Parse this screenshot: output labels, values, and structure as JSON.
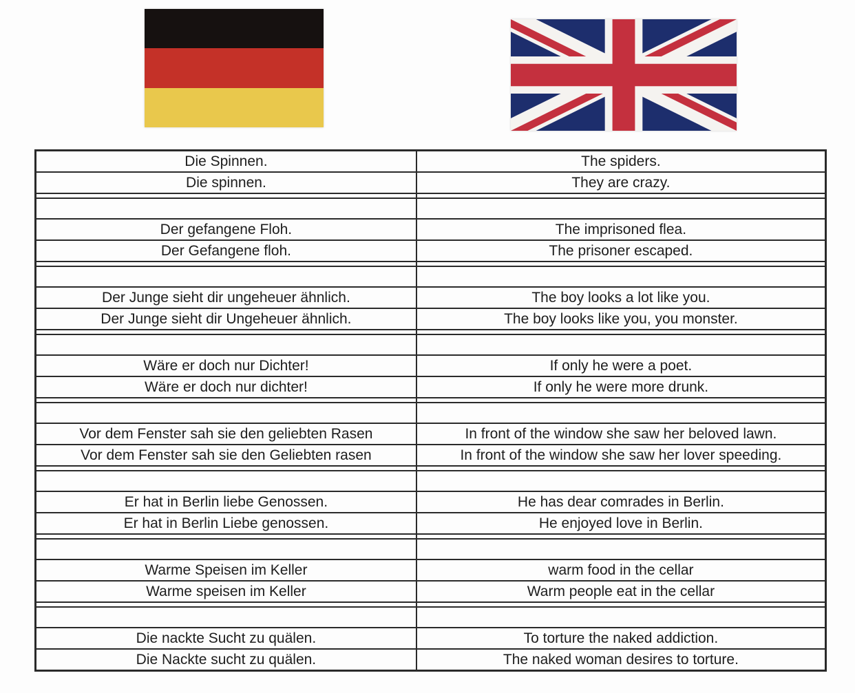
{
  "flags": {
    "germany": {
      "colors": {
        "black": "#161110",
        "red": "#c43128",
        "gold": "#e9c84c"
      }
    },
    "uk": {
      "colors": {
        "blue": "#1d2e6d",
        "red": "#c4303e",
        "white": "#f5f3f0"
      }
    }
  },
  "table": {
    "border_color": "#2a2a2a",
    "text_color": "#1d1d1d",
    "groups": [
      [
        {
          "de": "Die Spinnen.",
          "en": "The spiders."
        },
        {
          "de": "Die spinnen.",
          "en": "They are crazy."
        }
      ],
      [
        {
          "de": "Der gefangene Floh.",
          "en": "The imprisoned flea."
        },
        {
          "de": "Der Gefangene floh.",
          "en": "The prisoner escaped."
        }
      ],
      [
        {
          "de": "Der Junge sieht dir ungeheuer ähnlich.",
          "en": "The boy looks a lot like you."
        },
        {
          "de": "Der Junge sieht dir Ungeheuer ähnlich.",
          "en": "The boy looks like you, you monster."
        }
      ],
      [
        {
          "de": "Wäre er doch nur Dichter!",
          "en": "If only he were a poet."
        },
        {
          "de": "Wäre er doch nur dichter!",
          "en": "If only he were more drunk."
        }
      ],
      [
        {
          "de": "Vor dem Fenster sah sie den geliebten Rasen",
          "en": "In front of the window she saw her beloved lawn."
        },
        {
          "de": "Vor dem Fenster sah sie den Geliebten rasen",
          "en": "In front of the window she saw her lover speeding."
        }
      ],
      [
        {
          "de": "Er hat in Berlin liebe Genossen.",
          "en": "He has dear comrades in Berlin."
        },
        {
          "de": "Er hat in Berlin Liebe genossen.",
          "en": "He enjoyed love in Berlin."
        }
      ],
      [
        {
          "de": "Warme Speisen im Keller",
          "en": "warm food in the cellar"
        },
        {
          "de": "Warme speisen im Keller",
          "en": "Warm people eat in the cellar"
        }
      ],
      [
        {
          "de": "Die nackte Sucht zu quälen.",
          "en": "To torture the naked addiction."
        },
        {
          "de": "Die Nackte sucht zu quälen.",
          "en": "The naked woman desires to torture."
        }
      ]
    ]
  }
}
